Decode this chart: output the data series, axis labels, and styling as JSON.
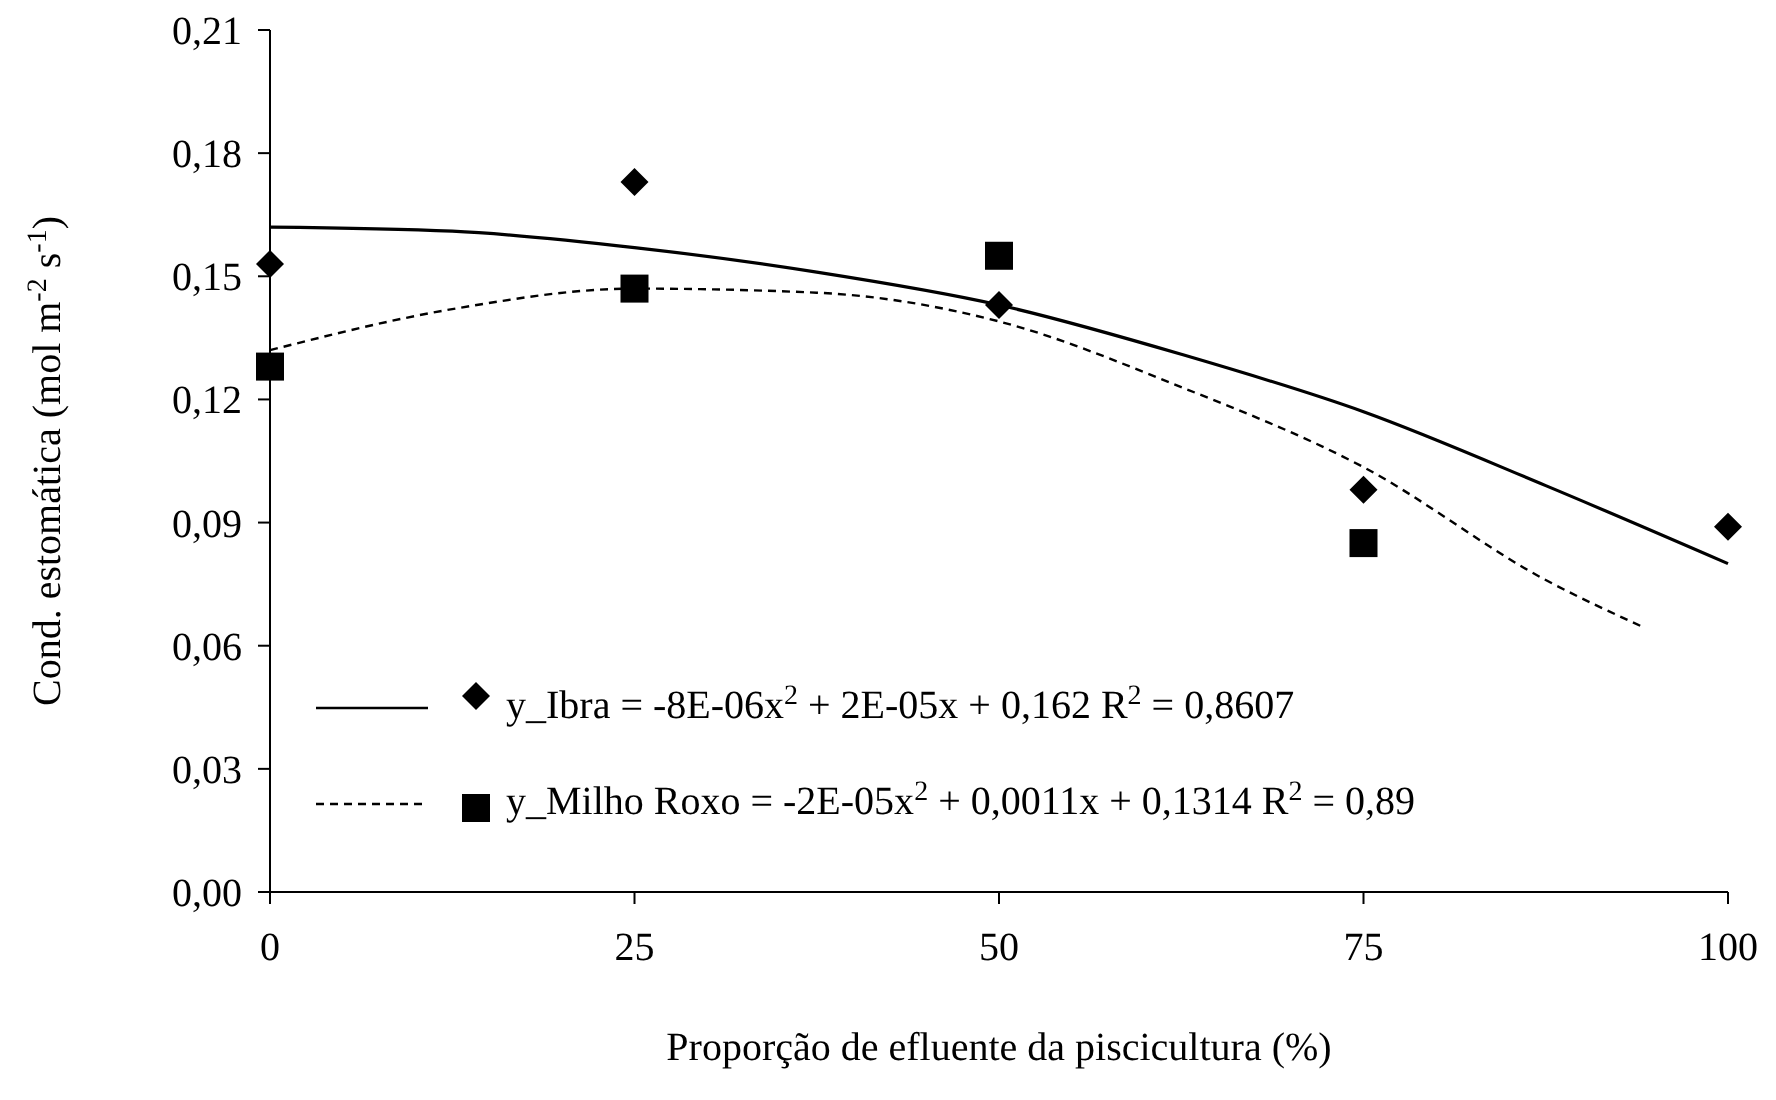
{
  "chart_data": {
    "type": "scatter",
    "xlabel": "Proporção de efluente da piscicultura (%)",
    "ylabel": "Cond. estomática (mol m$^{-2}$ s$^{-1}$)",
    "xlim": [
      0,
      100
    ],
    "xticks": [
      0,
      25,
      50,
      75,
      100
    ],
    "ylim": [
      0,
      0.21
    ],
    "yticks": [
      {
        "value": 0,
        "label": "0,00"
      },
      {
        "value": 0.03,
        "label": "0,03"
      },
      {
        "value": 0.06,
        "label": "0,06"
      },
      {
        "value": 0.09,
        "label": "0,09"
      },
      {
        "value": 0.12,
        "label": "0,12"
      },
      {
        "value": 0.15,
        "label": "0,15"
      },
      {
        "value": 0.18,
        "label": "0,18"
      },
      {
        "value": 0.21,
        "label": "0,21"
      }
    ],
    "grid": false,
    "legend": "bottom left",
    "series": [
      {
        "name": "y_Ibra = -8E-06x$^{2}$ + 2E-05x + 0,162 R$^{2}$ = 0,8607",
        "color": "#000000",
        "marker": "diamond",
        "x": [
          0,
          25,
          50,
          75,
          100
        ],
        "values": [
          0.153,
          0.173,
          0.143,
          0.098,
          0.089
        ]
      },
      {
        "name": "y_Milho Roxo = -2E-05x$^{2}$ + 0,0011x + 0,1314 R$^{2}$ = 0,89",
        "color": "#000000",
        "marker": "square",
        "x": [
          0,
          25,
          50,
          75
        ],
        "values": [
          0.128,
          0.147,
          0.155,
          0.085
        ]
      },
      {
        "type": "line",
        "color": "#000000",
        "line_style": "solid",
        "x": [
          0,
          12.5,
          25,
          37.5,
          50,
          62.5,
          75,
          87.5,
          100
        ],
        "values": [
          0.162,
          0.161,
          0.157,
          0.151,
          0.143,
          0.131,
          0.117,
          0.099,
          0.08
        ]
      },
      {
        "type": "line",
        "color": "#000000",
        "line_style": "dashed",
        "x": [
          0,
          12.5,
          25,
          37.5,
          50,
          62.5,
          75,
          87.5,
          94.2
        ],
        "values": [
          0.132,
          0.142,
          0.147,
          0.146,
          0.139,
          0.123,
          0.1035,
          0.076,
          0.0645
        ]
      }
    ]
  }
}
